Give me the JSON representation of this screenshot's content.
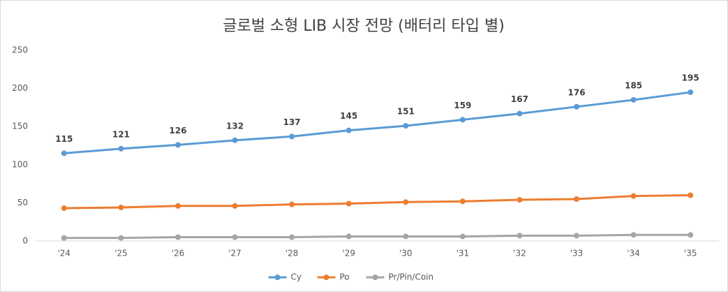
{
  "chart_data": {
    "type": "line",
    "title": "글로벌 소형 LIB 시장 전망 (배터리 타입 별)",
    "categories": [
      "'24",
      "'25",
      "'26",
      "'27",
      "'28",
      "'29",
      "'30",
      "'31",
      "'32",
      "'33",
      "'34",
      "'35"
    ],
    "series": [
      {
        "name": "Cy",
        "color": "#5b9bd5",
        "values": [
          115,
          121,
          126,
          132,
          137,
          145,
          151,
          159,
          167,
          176,
          185,
          195
        ],
        "data_labels": true
      },
      {
        "name": "Po",
        "color": "#ed7d31",
        "values": [
          43,
          44,
          46,
          46,
          48,
          49,
          51,
          52,
          54,
          55,
          59,
          60
        ]
      },
      {
        "name": "Pr/Pin/Coin",
        "color": "#a5a5a5",
        "values": [
          4,
          4,
          5,
          5,
          5,
          6,
          6,
          6,
          7,
          7,
          8,
          8
        ]
      }
    ],
    "ylim": [
      0,
      250
    ],
    "yticks": [
      0,
      50,
      100,
      150,
      200,
      250
    ],
    "legend": "bottom"
  }
}
